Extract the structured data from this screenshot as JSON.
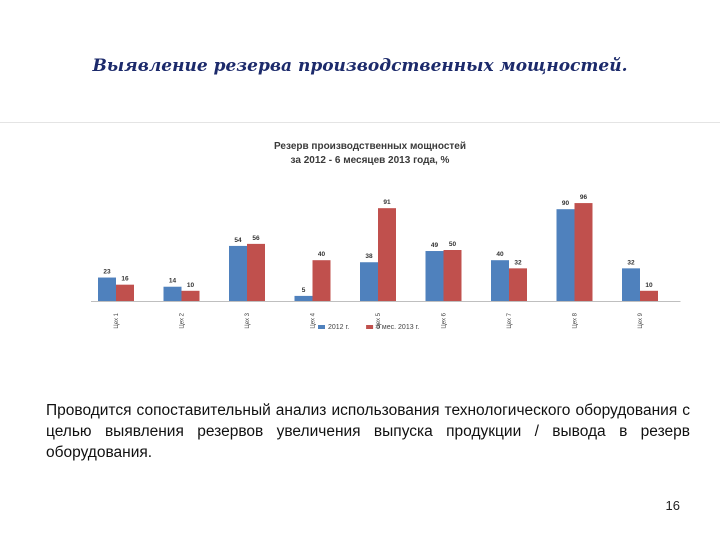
{
  "slide": {
    "title": "Выявление резерва производственных мощностей.",
    "body": "Проводится сопоставительный анализ использования технологического оборудования с целью выявления резервов увеличения выпуска продукции / вывода в резерв оборудования.",
    "page_number": "16"
  },
  "chart_data": {
    "type": "bar",
    "title_line1": "Резерв производственных мощностей",
    "title_line2": "за  2012 - 6 месяцев 2013 года, %",
    "categories": [
      "Цех 1",
      "Цех 2",
      "Цех 3",
      "Цех 4",
      "Цех 5",
      "Цех 6",
      "Цех 7",
      "Цех 8",
      "Цех 9"
    ],
    "series": [
      {
        "name": "2012 г.",
        "color": "#4f81bd",
        "values": [
          23,
          14,
          54,
          5,
          38,
          49,
          40,
          90,
          32
        ]
      },
      {
        "name": "6 мес. 2013 г.",
        "color": "#c0504d",
        "values": [
          16,
          10,
          56,
          40,
          91,
          50,
          32,
          96,
          10
        ]
      }
    ],
    "ylim": [
      0,
      100
    ],
    "legend": "bottom",
    "grid": false
  }
}
